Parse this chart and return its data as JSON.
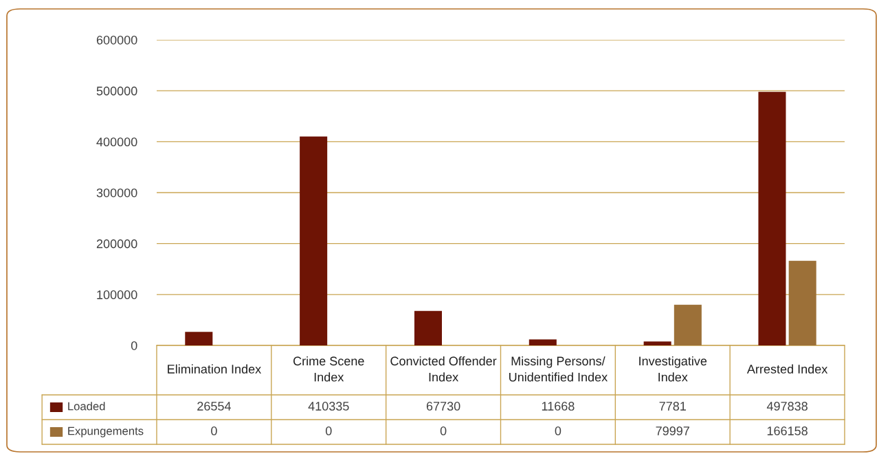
{
  "chart_data": {
    "type": "bar",
    "categories": [
      "Elimination Index",
      "Crime Scene\nIndex",
      "Convicted Offender\nIndex",
      "Missing Persons/\nUnidentified Index",
      "Investigative\nIndex",
      "Arrested Index"
    ],
    "series": [
      {
        "name": "Loaded",
        "color": "#6e1405",
        "values": [
          26554,
          410335,
          67730,
          11668,
          7781,
          497838
        ]
      },
      {
        "name": "Expungements",
        "color": "#9c7038",
        "values": [
          0,
          0,
          0,
          0,
          79997,
          166158
        ]
      }
    ],
    "ylim": [
      0,
      600000
    ],
    "yticks": [
      0,
      100000,
      200000,
      300000,
      400000,
      500000,
      600000
    ],
    "grid": "y",
    "data_labels": true,
    "legend": "bottom left"
  }
}
